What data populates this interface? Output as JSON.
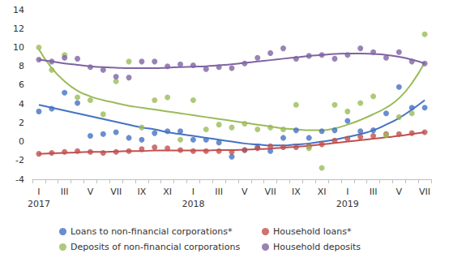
{
  "chart_data": {
    "type": "scatter",
    "categories": [
      "I\n2017",
      null,
      "III",
      null,
      "V",
      null,
      "VII",
      null,
      "IX",
      null,
      "XI",
      null,
      "I\n2018",
      null,
      "III",
      null,
      "V",
      null,
      "VII",
      null,
      "IX",
      null,
      "XI",
      null,
      "I\n2019",
      null,
      "III",
      null,
      "V",
      null,
      "VII"
    ],
    "ylim": [
      -4,
      14
    ],
    "yticks": [
      -4,
      -2,
      0,
      2,
      4,
      6,
      8,
      10,
      12,
      14
    ],
    "grid": false,
    "legend": "bottom",
    "marker": "circle",
    "series": [
      {
        "name": "Loans to non-financial corporations*",
        "color": "#4472c4",
        "values": [
          3.2,
          3.5,
          5.2,
          4.1,
          0.6,
          0.8,
          1.0,
          0.4,
          0.2,
          0.9,
          1.1,
          1.1,
          0.2,
          0.2,
          -0.1,
          -1.6,
          -0.9,
          -0.6,
          -1.0,
          0.4,
          1.2,
          0.4,
          1.1,
          1.2,
          2.2,
          1.1,
          1.2,
          3.0,
          5.8,
          3.6,
          3.6
        ],
        "trend": [
          3.9,
          3.6,
          3.3,
          3.0,
          2.7,
          2.4,
          2.1,
          1.8,
          1.5,
          1.3,
          1.0,
          0.8,
          0.6,
          0.4,
          0.2,
          0.0,
          -0.2,
          -0.3,
          -0.4,
          -0.4,
          -0.3,
          -0.2,
          0.0,
          0.2,
          0.5,
          0.8,
          1.2,
          1.8,
          2.5,
          3.4,
          4.4
        ]
      },
      {
        "name": "Household loans*",
        "color": "#c0504d",
        "values": [
          -1.3,
          -1.2,
          -1.1,
          -1.0,
          -1.1,
          -1.2,
          -1.1,
          -1.0,
          -0.8,
          -0.6,
          -0.7,
          -0.9,
          -1.0,
          -1.0,
          -1.0,
          -1.1,
          -0.9,
          -0.7,
          -0.5,
          -0.6,
          -0.6,
          -0.5,
          -0.3,
          0.1,
          0.3,
          0.5,
          0.6,
          0.8,
          0.8,
          0.9,
          1.0
        ],
        "trend": [
          -1.3,
          -1.25,
          -1.2,
          -1.15,
          -1.1,
          -1.1,
          -1.05,
          -1.0,
          -1.0,
          -0.95,
          -0.95,
          -0.95,
          -0.95,
          -0.95,
          -0.9,
          -0.9,
          -0.85,
          -0.8,
          -0.75,
          -0.65,
          -0.55,
          -0.45,
          -0.3,
          -0.15,
          0.0,
          0.15,
          0.3,
          0.45,
          0.6,
          0.8,
          1.0
        ]
      },
      {
        "name": "Deposits of non-financial corporations",
        "color": "#9bbb59",
        "values": [
          10.0,
          7.6,
          9.2,
          4.7,
          4.4,
          2.9,
          6.4,
          8.5,
          1.5,
          4.4,
          4.7,
          0.2,
          4.4,
          1.3,
          1.8,
          1.5,
          1.9,
          1.3,
          1.5,
          1.3,
          3.9,
          -0.7,
          -2.8,
          3.9,
          3.2,
          4.1,
          4.8,
          0.7,
          2.6,
          3.0,
          11.4
        ],
        "trend": [
          9.8,
          7.8,
          6.4,
          5.4,
          4.8,
          4.4,
          4.1,
          3.8,
          3.6,
          3.4,
          3.2,
          3.0,
          2.8,
          2.6,
          2.4,
          2.2,
          2.0,
          1.8,
          1.6,
          1.4,
          1.3,
          1.2,
          1.2,
          1.4,
          1.8,
          2.3,
          2.9,
          3.6,
          4.6,
          6.2,
          8.4
        ]
      },
      {
        "name": "Household deposits",
        "color": "#8064a2",
        "values": [
          8.7,
          8.5,
          8.9,
          8.8,
          7.9,
          7.6,
          6.9,
          6.8,
          8.5,
          8.5,
          8.0,
          8.2,
          8.1,
          7.7,
          7.9,
          7.8,
          8.3,
          8.9,
          9.4,
          9.9,
          8.8,
          9.1,
          9.2,
          8.8,
          9.2,
          9.9,
          9.5,
          8.9,
          9.5,
          8.5,
          8.3
        ],
        "trend": [
          8.7,
          8.5,
          8.3,
          8.15,
          8.0,
          7.9,
          7.85,
          7.8,
          7.8,
          7.8,
          7.85,
          7.9,
          7.95,
          8.0,
          8.1,
          8.2,
          8.35,
          8.5,
          8.65,
          8.8,
          8.95,
          9.1,
          9.2,
          9.3,
          9.35,
          9.35,
          9.3,
          9.2,
          9.0,
          8.7,
          8.3
        ]
      }
    ]
  }
}
